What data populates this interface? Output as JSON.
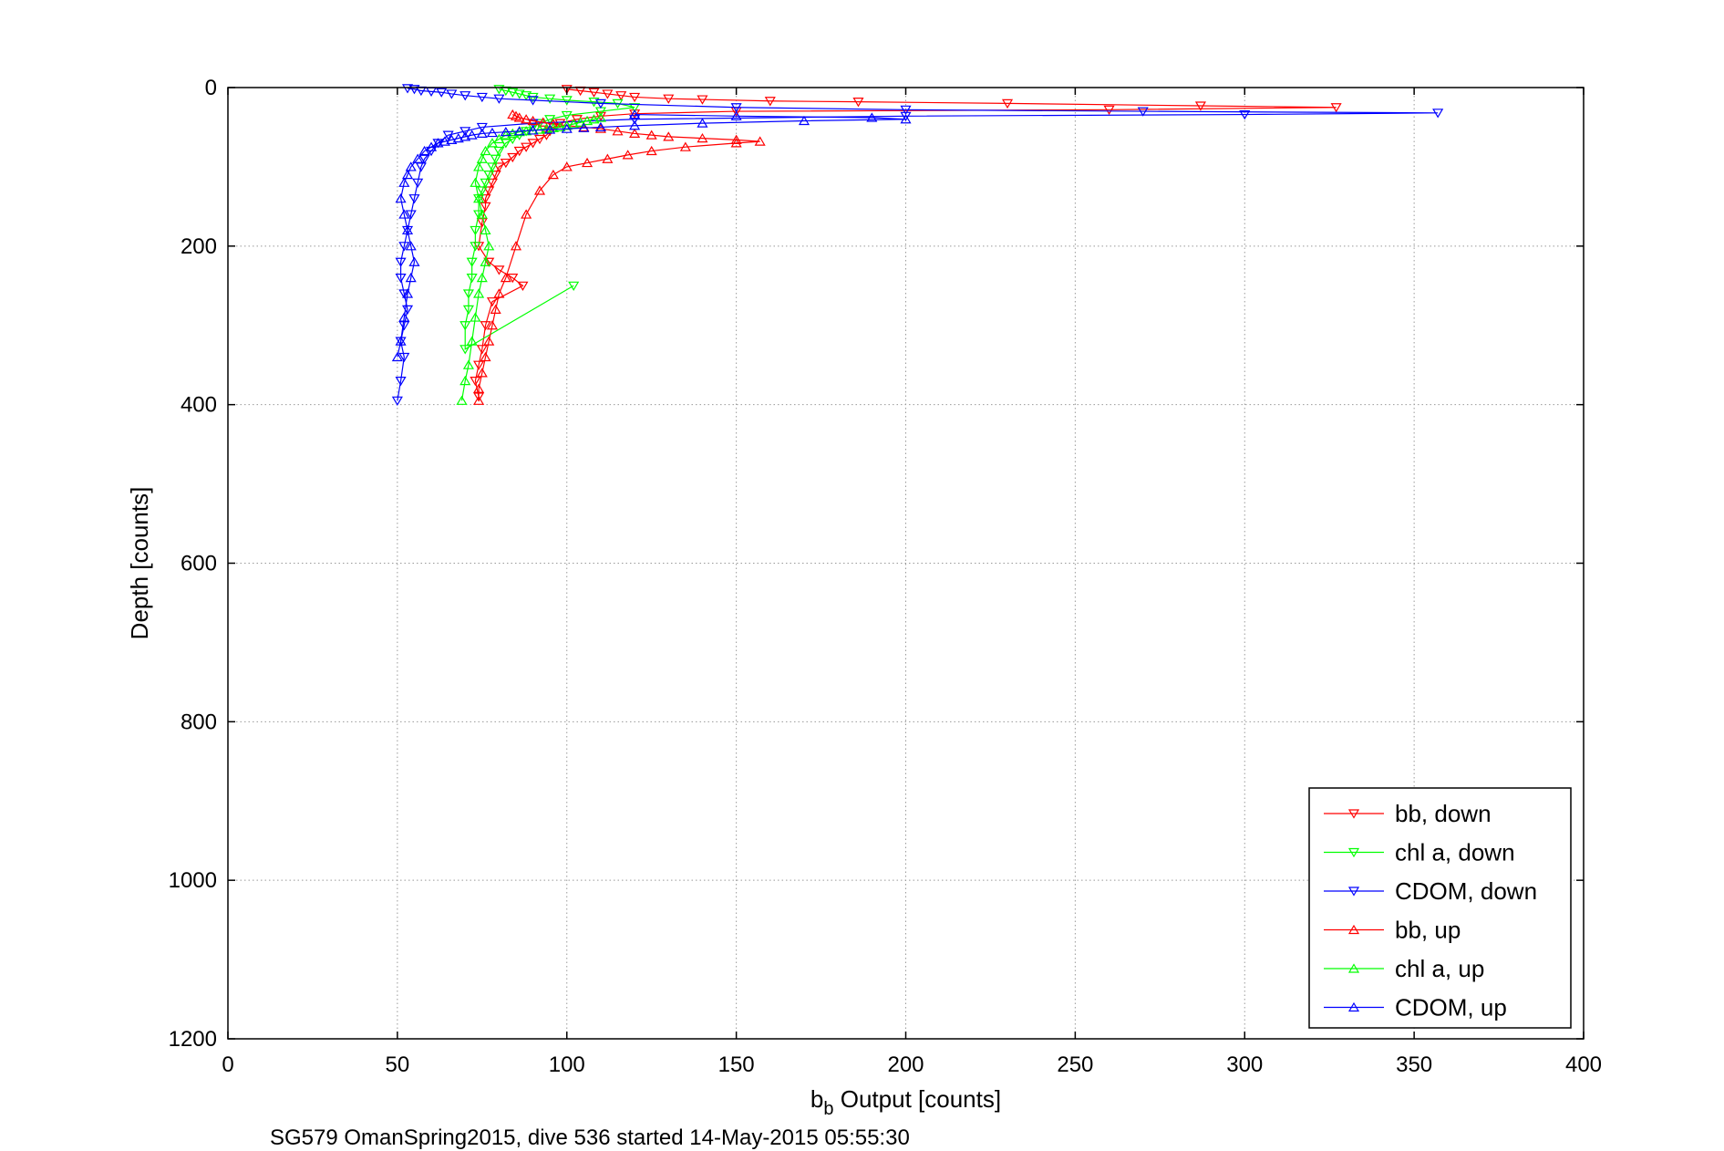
{
  "chart_data": {
    "type": "scatter",
    "xlabel_main": "b",
    "xlabel_sub": "b",
    "xlabel_rest": " Output [counts]",
    "ylabel": "Depth [counts]",
    "footer": "SG579 OmanSpring2015, dive 536 started 14-May-2015 05:55:30",
    "xlim": [
      0,
      400
    ],
    "ylim": [
      1200,
      0
    ],
    "y_reversed": true,
    "grid": true,
    "legend_position": "bottom-right",
    "x_ticks": [
      "0",
      "50",
      "100",
      "150",
      "200",
      "250",
      "300",
      "350",
      "400"
    ],
    "y_ticks": [
      "0",
      "200",
      "400",
      "600",
      "800",
      "1000",
      "1200"
    ],
    "series": [
      {
        "name": "bb, down",
        "color": "#ff0000",
        "marker": "triangle-down",
        "x": [
          100,
          104,
          108,
          112,
          116,
          120,
          130,
          140,
          160,
          186,
          230,
          287,
          327,
          260,
          150,
          120,
          110,
          103,
          98,
          96,
          95,
          94,
          92,
          90,
          88,
          86,
          84,
          82,
          80,
          79,
          78,
          77,
          76,
          76,
          75,
          74,
          77,
          80,
          84,
          87,
          78,
          76,
          75,
          74,
          73,
          74
        ],
        "y": [
          2,
          4,
          6,
          8,
          10,
          12,
          14,
          15,
          17,
          18,
          20,
          23,
          25,
          28,
          30,
          33,
          36,
          40,
          45,
          50,
          55,
          60,
          65,
          70,
          75,
          80,
          88,
          95,
          100,
          110,
          120,
          130,
          140,
          150,
          170,
          200,
          220,
          230,
          240,
          250,
          270,
          300,
          330,
          350,
          370,
          390
        ]
      },
      {
        "name": "chl a, down",
        "color": "#00ff00",
        "marker": "triangle-down",
        "x": [
          80,
          82,
          84,
          86,
          88,
          90,
          95,
          100,
          108,
          115,
          120,
          110,
          100,
          95,
          92,
          90,
          88,
          86,
          84,
          82,
          80,
          79,
          78,
          77,
          76,
          75,
          74,
          74,
          73,
          73,
          72,
          72,
          71,
          71,
          70,
          70,
          102
        ],
        "y": [
          2,
          4,
          6,
          8,
          10,
          12,
          14,
          16,
          18,
          20,
          25,
          30,
          35,
          40,
          45,
          50,
          55,
          60,
          65,
          70,
          80,
          90,
          100,
          110,
          120,
          130,
          140,
          160,
          180,
          200,
          220,
          240,
          260,
          280,
          300,
          330,
          250
        ]
      },
      {
        "name": "CDOM, down",
        "color": "#0000ff",
        "marker": "triangle-down",
        "x": [
          53,
          55,
          57,
          60,
          63,
          66,
          70,
          75,
          80,
          90,
          110,
          150,
          200,
          270,
          357,
          300,
          200,
          120,
          90,
          75,
          70,
          65,
          62,
          60,
          58,
          57,
          56,
          55,
          54,
          53,
          52,
          51,
          51,
          52,
          53,
          52,
          51,
          52,
          51,
          50
        ],
        "y": [
          1,
          2,
          4,
          5,
          6,
          8,
          10,
          12,
          14,
          16,
          20,
          25,
          28,
          30,
          32,
          34,
          36,
          40,
          45,
          50,
          55,
          60,
          70,
          80,
          90,
          100,
          120,
          140,
          160,
          180,
          200,
          220,
          240,
          260,
          280,
          300,
          320,
          340,
          370,
          395
        ]
      },
      {
        "name": "bb, up",
        "color": "#ff0000",
        "marker": "triangle-up",
        "x": [
          74,
          74,
          75,
          76,
          77,
          78,
          79,
          80,
          82,
          85,
          88,
          92,
          96,
          100,
          106,
          112,
          118,
          125,
          135,
          150,
          157,
          150,
          140,
          130,
          125,
          120,
          115,
          110,
          105,
          100,
          96,
          93,
          90,
          88,
          86,
          85,
          84
        ],
        "y": [
          395,
          380,
          360,
          340,
          320,
          300,
          280,
          260,
          240,
          200,
          160,
          130,
          110,
          100,
          95,
          90,
          85,
          80,
          75,
          70,
          68,
          66,
          64,
          62,
          60,
          58,
          55,
          52,
          50,
          48,
          46,
          44,
          42,
          40,
          38,
          36,
          34
        ]
      },
      {
        "name": "chl a, up",
        "color": "#00ff00",
        "marker": "triangle-up",
        "x": [
          69,
          70,
          71,
          72,
          73,
          74,
          75,
          76,
          77,
          76,
          75,
          74,
          73,
          74,
          75,
          76,
          78,
          80,
          82,
          84,
          86,
          88,
          90,
          92,
          94,
          96,
          98,
          100,
          102,
          104,
          106,
          108,
          110
        ],
        "y": [
          395,
          370,
          350,
          320,
          290,
          260,
          240,
          220,
          200,
          180,
          160,
          140,
          120,
          100,
          90,
          80,
          70,
          65,
          60,
          58,
          56,
          55,
          54,
          53,
          52,
          51,
          50,
          48,
          46,
          44,
          42,
          40,
          38
        ]
      },
      {
        "name": "CDOM, up",
        "color": "#0000ff",
        "marker": "triangle-up",
        "x": [
          50,
          51,
          52,
          53,
          54,
          55,
          54,
          53,
          52,
          51,
          52,
          53,
          54,
          56,
          58,
          60,
          62,
          64,
          66,
          68,
          70,
          72,
          75,
          78,
          82,
          86,
          90,
          95,
          100,
          105,
          110,
          120,
          140,
          170,
          200,
          190,
          150,
          120
        ],
        "y": [
          340,
          320,
          290,
          260,
          240,
          220,
          200,
          180,
          160,
          140,
          120,
          110,
          100,
          90,
          80,
          75,
          70,
          68,
          66,
          64,
          62,
          60,
          58,
          57,
          56,
          55,
          54,
          53,
          52,
          51,
          50,
          48,
          45,
          42,
          40,
          38,
          36,
          34
        ]
      }
    ]
  }
}
